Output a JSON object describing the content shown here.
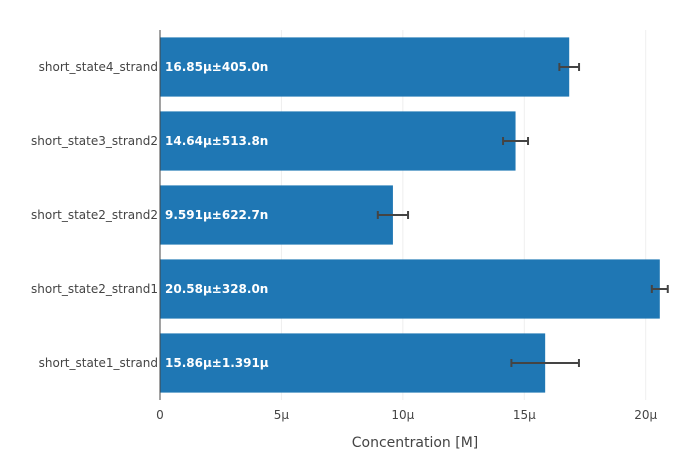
{
  "chart_data": {
    "type": "bar",
    "orientation": "horizontal",
    "categories": [
      "short_state1_strand",
      "short_state2_strand1",
      "short_state2_strand2",
      "short_state3_strand2",
      "short_state4_strand"
    ],
    "values": [
      15.86,
      20.58,
      9.591,
      14.64,
      16.85
    ],
    "errors": [
      1.391,
      0.328,
      0.6227,
      0.5138,
      0.405
    ],
    "value_unit": "µM",
    "data_labels": [
      "15.86µ±1.391µ",
      "20.58µ±328.0n",
      "9.591µ±622.7n",
      "14.64µ±513.8n",
      "16.85µ±405.0n"
    ],
    "xlabel": "Concentration [M]",
    "ylabel": "",
    "title": "",
    "xlim": [
      0,
      21
    ],
    "x_ticks": [
      0,
      5,
      10,
      15,
      20
    ],
    "x_tick_labels": [
      "0",
      "5µ",
      "10µ",
      "15µ",
      "20µ"
    ],
    "grid": true,
    "bar_color": "#1f77b4",
    "error_bar_color": "#444444"
  }
}
